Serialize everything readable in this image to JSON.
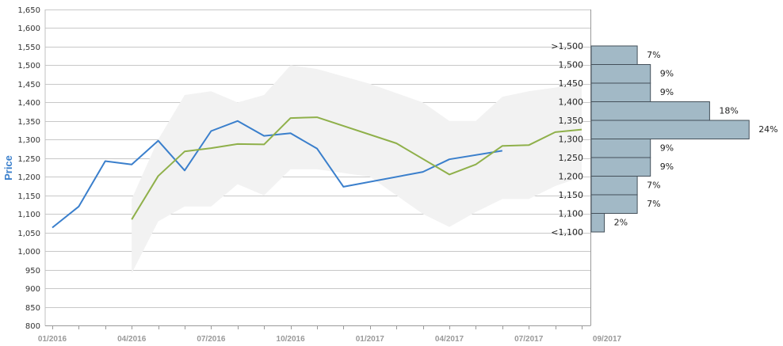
{
  "chart_data": {
    "type": "line",
    "ylabel": "Price",
    "ylim": [
      800,
      1650
    ],
    "yticks": [
      "800",
      "850",
      "900",
      "950",
      "1,000",
      "1,050",
      "1,100",
      "1,150",
      "1,200",
      "1,250",
      "1,300",
      "1,350",
      "1,400",
      "1,450",
      "1,500",
      "1,550",
      "1,600",
      "1,650"
    ],
    "xticks": [
      "01/2016",
      "04/2016",
      "07/2016",
      "10/2016",
      "01/2017",
      "04/2017",
      "07/2017",
      "09/2017"
    ],
    "grid": true,
    "colors": {
      "series_a": "#3a7fcc",
      "series_b": "#8fb04a",
      "band": "#f2f2f2",
      "hist_fill": "#a2b9c6",
      "hist_stroke": "#44505a",
      "ylabel": "#3a7fcc"
    },
    "series": [
      {
        "x": [
          "2016-01",
          "2016-02",
          "2016-03",
          "2016-04",
          "2016-05",
          "2016-06",
          "2016-07",
          "2016-08",
          "2016-09",
          "2016-10",
          "2016-11",
          "2016-12",
          "2017-03",
          "2017-04",
          "2017-06"
        ],
        "values": [
          1063,
          1120,
          1242,
          1233,
          1297,
          1217,
          1323,
          1350,
          1310,
          1317,
          1276,
          1173,
          1213,
          1247,
          1270
        ]
      },
      {
        "x": [
          "2016-04",
          "2016-05",
          "2016-06",
          "2016-07",
          "2016-08",
          "2016-09",
          "2016-10",
          "2016-11",
          "2017-02",
          "2017-04",
          "2017-05",
          "2017-06",
          "2017-07",
          "2017-08",
          "2017-09"
        ],
        "values": [
          1085,
          1202,
          1268,
          1277,
          1288,
          1287,
          1358,
          1360,
          1290,
          1206,
          1233,
          1283,
          1285,
          1320,
          1327
        ]
      }
    ],
    "band": {
      "x": [
        "2016-04",
        "2016-05",
        "2016-06",
        "2016-07",
        "2016-08",
        "2016-09",
        "2016-10",
        "2016-11",
        "2017-01",
        "2017-03",
        "2017-04",
        "2017-05",
        "2017-06",
        "2017-07",
        "2017-08",
        "2017-09"
      ],
      "upper": [
        1140,
        1300,
        1420,
        1430,
        1400,
        1420,
        1500,
        1490,
        1450,
        1400,
        1350,
        1350,
        1415,
        1430,
        1440,
        1450
      ],
      "lower": [
        940,
        1080,
        1120,
        1120,
        1180,
        1150,
        1220,
        1220,
        1200,
        1100,
        1065,
        1105,
        1140,
        1140,
        1175,
        1200
      ]
    },
    "histogram": {
      "bins": [
        {
          "label": ">1,500",
          "percent": 7,
          "display": "7%"
        },
        {
          "label": "1,500",
          "percent": 9,
          "display": "9%"
        },
        {
          "label": "1,450",
          "percent": 9,
          "display": "9%"
        },
        {
          "label": "1,400",
          "percent": 18,
          "display": "18%"
        },
        {
          "label": "1,350",
          "percent": 24,
          "display": "24%"
        },
        {
          "label": "1,300",
          "percent": 9,
          "display": "9%"
        },
        {
          "label": "1,250",
          "percent": 9,
          "display": "9%"
        },
        {
          "label": "1,200",
          "percent": 7,
          "display": "7%"
        },
        {
          "label": "1,150",
          "percent": 7,
          "display": "7%"
        },
        {
          "label": "1,100",
          "percent": 2,
          "display": "2%"
        },
        {
          "label": "<1,100",
          "percent": 0,
          "display": ""
        }
      ]
    }
  }
}
